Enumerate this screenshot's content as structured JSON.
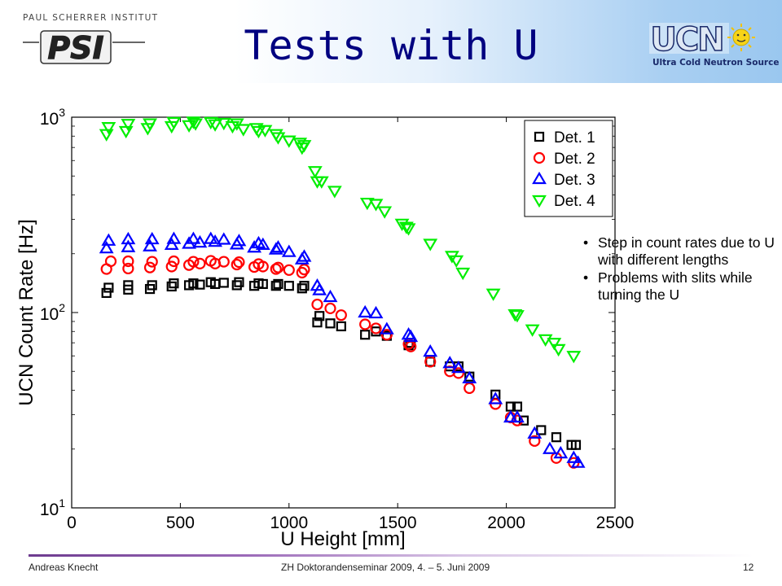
{
  "header": {
    "institute_name": "PAUL SCHERRER INSTITUT",
    "institute_logo_text": "PSI",
    "title": "Tests with U",
    "ucn_logo_text": "UCN",
    "ucn_caption": "Ultra Cold Neutron Source"
  },
  "bullets": [
    "Step in count rates due to U with different lengths",
    "Problems with slits while turning the U"
  ],
  "footer": {
    "author": "Andreas Knecht",
    "event": "ZH Doktorandenseminar 2009, 4. – 5. Juni 2009",
    "page": "12"
  },
  "colors": {
    "title": "#000080",
    "det1": "#000000",
    "det2": "#ff0000",
    "det3": "#0000ff",
    "det4": "#00ee00"
  },
  "chart_data": {
    "type": "scatter",
    "xlabel": "U Height [mm]",
    "ylabel": "UCN Count Rate [Hz]",
    "xlim": [
      0,
      2500
    ],
    "ylim": [
      10,
      1000
    ],
    "yscale": "log",
    "xticks": [
      "0",
      "500",
      "1000",
      "1500",
      "2000",
      "2500"
    ],
    "yticks": [
      {
        "base": "10",
        "exp": "1",
        "value": 10
      },
      {
        "base": "10",
        "exp": "2",
        "value": 100
      },
      {
        "base": "10",
        "exp": "3",
        "value": 1000
      }
    ],
    "legend_position": "top-right",
    "series": [
      {
        "name": "Det. 1",
        "marker": "square",
        "color": "#000000",
        "x": [
          160,
          170,
          260,
          260,
          360,
          370,
          460,
          470,
          540,
          560,
          590,
          640,
          660,
          700,
          760,
          770,
          840,
          860,
          880,
          940,
          950,
          1000,
          1060,
          1070,
          1130,
          1140,
          1190,
          1240,
          1350,
          1400,
          1450,
          1550,
          1560,
          1650,
          1740,
          1780,
          1830,
          1950,
          2020,
          2050,
          2080,
          2160,
          2230,
          2300,
          2320
        ],
        "y": [
          126,
          134,
          131,
          138,
          132,
          138,
          136,
          141,
          138,
          141,
          139,
          143,
          140,
          142,
          138,
          143,
          137,
          141,
          140,
          137,
          140,
          137,
          133,
          137,
          89,
          96,
          88,
          85,
          77,
          80,
          76,
          68,
          70,
          56,
          53,
          53,
          47,
          38,
          33,
          33,
          28,
          25,
          23,
          21,
          21
        ]
      },
      {
        "name": "Det. 2",
        "marker": "circle",
        "color": "#ff0000",
        "x": [
          160,
          180,
          260,
          260,
          360,
          370,
          460,
          470,
          540,
          560,
          590,
          640,
          660,
          700,
          760,
          770,
          840,
          860,
          880,
          940,
          950,
          1000,
          1060,
          1070,
          1130,
          1190,
          1240,
          1350,
          1400,
          1450,
          1550,
          1560,
          1650,
          1740,
          1780,
          1830,
          1950,
          2020,
          2050,
          2130,
          2230,
          2310
        ],
        "y": [
          167,
          183,
          168,
          183,
          170,
          182,
          172,
          183,
          175,
          182,
          178,
          184,
          178,
          182,
          176,
          181,
          171,
          177,
          172,
          167,
          170,
          165,
          160,
          166,
          110,
          105,
          97,
          87,
          83,
          77,
          69,
          67,
          56,
          50,
          49,
          41,
          34,
          29,
          28,
          22,
          18,
          17
        ]
      },
      {
        "name": "Det. 3",
        "marker": "triangle-up",
        "color": "#0000ff",
        "x": [
          160,
          170,
          260,
          260,
          360,
          370,
          460,
          470,
          540,
          560,
          590,
          640,
          660,
          700,
          760,
          770,
          840,
          860,
          880,
          940,
          950,
          1000,
          1060,
          1070,
          1130,
          1140,
          1190,
          1350,
          1400,
          1450,
          1550,
          1560,
          1650,
          1740,
          1780,
          1830,
          1950,
          2020,
          2050,
          2130,
          2200,
          2250,
          2310,
          2330
        ],
        "y": [
          213,
          233,
          216,
          237,
          218,
          237,
          222,
          238,
          225,
          238,
          228,
          238,
          230,
          236,
          223,
          232,
          215,
          226,
          222,
          210,
          215,
          204,
          187,
          193,
          137,
          130,
          120,
          100,
          99,
          82,
          77,
          75,
          63,
          55,
          52,
          46,
          36,
          29,
          29,
          24,
          20,
          19,
          18,
          17
        ]
      },
      {
        "name": "Det. 4",
        "marker": "triangle-down",
        "color": "#00ee00",
        "x": [
          160,
          170,
          250,
          260,
          350,
          360,
          460,
          470,
          540,
          560,
          570,
          640,
          660,
          700,
          740,
          760,
          790,
          850,
          860,
          890,
          940,
          950,
          1000,
          1050,
          1060,
          1070,
          1120,
          1130,
          1150,
          1210,
          1360,
          1400,
          1440,
          1520,
          1540,
          1550,
          1650,
          1750,
          1770,
          1800,
          1940,
          2040,
          2050,
          2120,
          2180,
          2220,
          2240,
          2310
        ],
        "y": [
          820,
          890,
          850,
          925,
          880,
          930,
          900,
          945,
          910,
          950,
          930,
          945,
          920,
          935,
          900,
          930,
          870,
          880,
          850,
          860,
          820,
          790,
          760,
          740,
          700,
          720,
          530,
          470,
          470,
          420,
          365,
          360,
          330,
          285,
          275,
          270,
          225,
          195,
          185,
          160,
          125,
          98,
          97,
          82,
          73,
          70,
          65,
          60
        ]
      }
    ]
  }
}
